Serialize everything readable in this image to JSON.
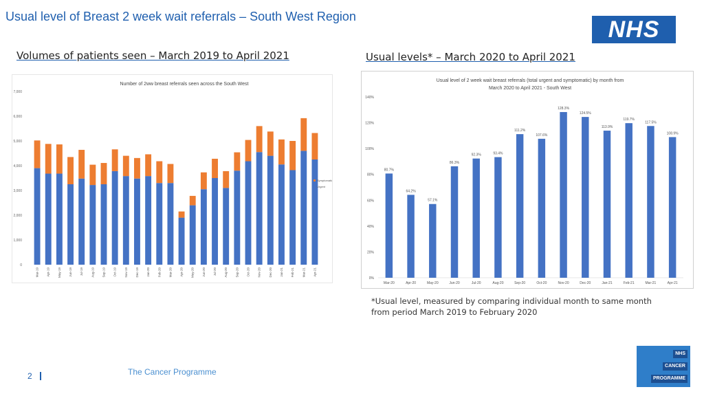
{
  "header": {
    "title": "Usual level of Breast 2 week wait referrals – South West Region",
    "logo_text": "NHS"
  },
  "sections": {
    "left_heading": "Volumes of patients seen – March 2019 to April 2021",
    "right_heading": "Usual levels* – March 2020 to April 2021"
  },
  "footnote": "*Usual level, measured by comparing individual month to same month from period March 2019 to February 2020",
  "footer": {
    "page_number": "2",
    "programme": "The Cancer Programme",
    "badge_lines": [
      "NHS",
      "CANCER",
      "PROGRAMME"
    ]
  },
  "colors": {
    "brand_blue": "#1f5fae",
    "urgent": "#4472c4",
    "symptomatic": "#ed7d31"
  },
  "chart_data": [
    {
      "type": "bar",
      "stacked": true,
      "title": "Number of 2ww breast referrals seen across the South West",
      "categories": [
        "Mar-19",
        "Apr-19",
        "May-19",
        "Jun-19",
        "Jul-19",
        "Aug-19",
        "Sep-19",
        "Oct-19",
        "Nov-19",
        "Dec-19",
        "Jan-20",
        "Feb-20",
        "Mar-20",
        "Apr-20",
        "May-20",
        "Jun-20",
        "Jul-20",
        "Aug-20",
        "Sep-20",
        "Oct-20",
        "Nov-20",
        "Dec-20",
        "Jan-21",
        "Feb-21",
        "Mar-21",
        "Apr-21"
      ],
      "series": [
        {
          "name": "Urgent",
          "color": "#4472c4",
          "values": [
            3900,
            3680,
            3680,
            3250,
            3480,
            3220,
            3250,
            3780,
            3580,
            3480,
            3580,
            3300,
            3300,
            1900,
            2400,
            3050,
            3500,
            3100,
            3800,
            4180,
            4550,
            4400,
            4050,
            3820,
            4600,
            4250
          ]
        },
        {
          "name": "Symptomatic",
          "color": "#ed7d31",
          "values": [
            1120,
            1200,
            1180,
            1100,
            1160,
            820,
            860,
            880,
            820,
            830,
            880,
            880,
            770,
            250,
            380,
            680,
            780,
            680,
            740,
            860,
            1050,
            980,
            1010,
            1180,
            1320,
            1070
          ]
        }
      ],
      "y_ticks": [
        "0",
        "1,000",
        "2,000",
        "3,000",
        "4,000",
        "5,000",
        "6,000",
        "7,000"
      ],
      "ylim": [
        0,
        7000
      ],
      "legend": "right",
      "grid": false
    },
    {
      "type": "bar",
      "title_lines": [
        "Usual level of 2 week wait breast referrals (total urgent and symptomatic)  by month from",
        "March 2020 to April 2021 - South West"
      ],
      "categories": [
        "Mar-20",
        "Apr-20",
        "May-20",
        "Jun-20",
        "Jul-20",
        "Aug-20",
        "Sep-20",
        "Oct-20",
        "Nov-20",
        "Dec-20",
        "Jan-21",
        "Feb-21",
        "Mar-21",
        "Apr-21"
      ],
      "values": [
        80.7,
        64.2,
        57.1,
        86.3,
        92.3,
        93.4,
        111.2,
        107.6,
        128.3,
        124.5,
        113.9,
        119.7,
        117.5,
        108.9
      ],
      "data_labels": [
        "80.7%",
        "64.2%",
        "57.1%",
        "86.3%",
        "92.3%",
        "93.4%",
        "111.2%",
        "107.6%",
        "128.3%",
        "124.5%",
        "113.9%",
        "119.7%",
        "117.5%",
        "108.9%"
      ],
      "color": "#4472c4",
      "y_ticks": [
        "0%",
        "20%",
        "40%",
        "60%",
        "80%",
        "100%",
        "120%",
        "140%"
      ],
      "ylim": [
        0,
        140
      ],
      "grid": false
    }
  ]
}
